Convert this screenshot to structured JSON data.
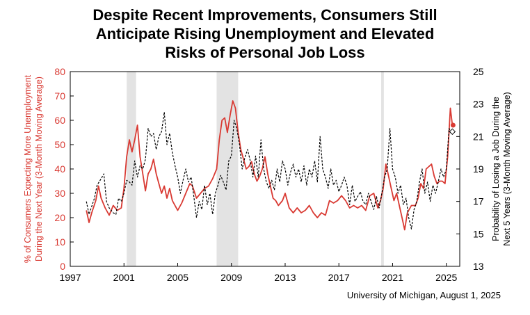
{
  "title_lines": [
    "Despite Recent Improvements, Consumers Still",
    "Anticipate Rising Unemployment and Elevated",
    "Risks of Personal Job Loss"
  ],
  "source_note": "University of Michigan, August 1, 2025",
  "colors": {
    "left_series": "#d93a33",
    "right_series": "#000000",
    "recession": "#e3e3e3",
    "left_axis": "#d93a33"
  },
  "chart_data": {
    "type": "line",
    "title": "Despite Recent Improvements, Consumers Still Anticipate Rising Unemployment and Elevated Risks of Personal Job Loss",
    "xlim": [
      1997,
      2026
    ],
    "x_ticks": [
      "1997",
      "2001",
      "2005",
      "2009",
      "2013",
      "2017",
      "2021",
      "2025"
    ],
    "ylabel_left_lines": [
      "% of Consumers Expecting More Unemployment",
      "During the Next Year (3-Month Moving Average)"
    ],
    "ylim_left": [
      0,
      80
    ],
    "yticks_left": [
      "0",
      "10",
      "20",
      "30",
      "40",
      "50",
      "60",
      "70",
      "80"
    ],
    "ylabel_right_lines": [
      "Probability of Losing a Job During the",
      "Next 5 Years (3-Month Moving Average)"
    ],
    "ylim_right": [
      13,
      25
    ],
    "yticks_right": [
      "13",
      "15",
      "17",
      "19",
      "21",
      "23",
      "25"
    ],
    "recessions": [
      [
        2001.2,
        2001.9
      ],
      [
        2007.9,
        2009.5
      ],
      [
        2020.15,
        2020.35
      ]
    ],
    "series": [
      {
        "axis": "left",
        "style": "solid",
        "points": [
          [
            1998.2,
            23
          ],
          [
            1998.4,
            18
          ],
          [
            1998.6,
            22
          ],
          [
            1998.9,
            27
          ],
          [
            1999.1,
            33
          ],
          [
            1999.3,
            28
          ],
          [
            1999.6,
            24
          ],
          [
            1999.9,
            21
          ],
          [
            2000.2,
            25
          ],
          [
            2000.5,
            23
          ],
          [
            2000.8,
            24
          ],
          [
            2001.0,
            32
          ],
          [
            2001.2,
            45
          ],
          [
            2001.4,
            52
          ],
          [
            2001.6,
            47
          ],
          [
            2001.8,
            52
          ],
          [
            2002.0,
            58
          ],
          [
            2002.2,
            45
          ],
          [
            2002.4,
            38
          ],
          [
            2002.6,
            31
          ],
          [
            2002.8,
            38
          ],
          [
            2003.0,
            40
          ],
          [
            2003.2,
            44
          ],
          [
            2003.4,
            38
          ],
          [
            2003.6,
            34
          ],
          [
            2003.8,
            30
          ],
          [
            2004.0,
            33
          ],
          [
            2004.2,
            28
          ],
          [
            2004.4,
            32
          ],
          [
            2004.6,
            27
          ],
          [
            2004.8,
            25
          ],
          [
            2005.0,
            23
          ],
          [
            2005.3,
            26
          ],
          [
            2005.6,
            30
          ],
          [
            2005.9,
            34
          ],
          [
            2006.1,
            33
          ],
          [
            2006.4,
            28
          ],
          [
            2006.7,
            30
          ],
          [
            2007.0,
            32
          ],
          [
            2007.3,
            33
          ],
          [
            2007.6,
            36
          ],
          [
            2007.9,
            40
          ],
          [
            2008.1,
            52
          ],
          [
            2008.3,
            60
          ],
          [
            2008.5,
            61
          ],
          [
            2008.7,
            55
          ],
          [
            2008.9,
            62
          ],
          [
            2009.1,
            68
          ],
          [
            2009.3,
            65
          ],
          [
            2009.5,
            55
          ],
          [
            2009.7,
            48
          ],
          [
            2009.9,
            44
          ],
          [
            2010.1,
            40
          ],
          [
            2010.3,
            41
          ],
          [
            2010.5,
            43
          ],
          [
            2010.7,
            38
          ],
          [
            2010.9,
            35
          ],
          [
            2011.1,
            37
          ],
          [
            2011.3,
            40
          ],
          [
            2011.5,
            45
          ],
          [
            2011.7,
            38
          ],
          [
            2011.9,
            33
          ],
          [
            2012.1,
            28
          ],
          [
            2012.3,
            27
          ],
          [
            2012.5,
            25
          ],
          [
            2012.8,
            27
          ],
          [
            2013.0,
            30
          ],
          [
            2013.3,
            24
          ],
          [
            2013.6,
            22
          ],
          [
            2013.9,
            24
          ],
          [
            2014.2,
            22
          ],
          [
            2014.5,
            23
          ],
          [
            2014.8,
            25
          ],
          [
            2015.1,
            22
          ],
          [
            2015.4,
            20
          ],
          [
            2015.7,
            22
          ],
          [
            2016.0,
            21
          ],
          [
            2016.3,
            27
          ],
          [
            2016.6,
            26
          ],
          [
            2016.9,
            27
          ],
          [
            2017.2,
            29
          ],
          [
            2017.5,
            27
          ],
          [
            2017.8,
            24
          ],
          [
            2018.1,
            25
          ],
          [
            2018.4,
            24
          ],
          [
            2018.7,
            25
          ],
          [
            2019.0,
            23
          ],
          [
            2019.3,
            29
          ],
          [
            2019.6,
            30
          ],
          [
            2019.9,
            24
          ],
          [
            2020.1,
            27
          ],
          [
            2020.3,
            32
          ],
          [
            2020.5,
            42
          ],
          [
            2020.7,
            37
          ],
          [
            2020.9,
            32
          ],
          [
            2021.1,
            27
          ],
          [
            2021.3,
            30
          ],
          [
            2021.5,
            25
          ],
          [
            2021.7,
            20
          ],
          [
            2021.9,
            15
          ],
          [
            2022.1,
            22
          ],
          [
            2022.4,
            25
          ],
          [
            2022.7,
            25
          ],
          [
            2022.9,
            28
          ],
          [
            2023.1,
            34
          ],
          [
            2023.3,
            32
          ],
          [
            2023.5,
            40
          ],
          [
            2023.7,
            41
          ],
          [
            2023.9,
            42
          ],
          [
            2024.1,
            37
          ],
          [
            2024.3,
            34
          ],
          [
            2024.5,
            35
          ],
          [
            2024.7,
            35
          ],
          [
            2024.9,
            34
          ],
          [
            2025.1,
            45
          ],
          [
            2025.3,
            65
          ],
          [
            2025.45,
            58
          ]
        ]
      },
      {
        "axis": "right",
        "style": "dashed",
        "points": [
          [
            1998.2,
            17.0
          ],
          [
            1998.4,
            16.2
          ],
          [
            1998.6,
            16.7
          ],
          [
            1998.8,
            17.2
          ],
          [
            1999.0,
            18.0
          ],
          [
            1999.3,
            18.4
          ],
          [
            1999.5,
            18.7
          ],
          [
            1999.7,
            17.0
          ],
          [
            1999.9,
            16.6
          ],
          [
            2000.2,
            16.3
          ],
          [
            2000.4,
            16.2
          ],
          [
            2000.6,
            17.2
          ],
          [
            2000.8,
            17.0
          ],
          [
            2001.0,
            17.5
          ],
          [
            2001.2,
            18.3
          ],
          [
            2001.4,
            18.2
          ],
          [
            2001.6,
            18.0
          ],
          [
            2001.8,
            19.5
          ],
          [
            2002.0,
            18.5
          ],
          [
            2002.2,
            19.2
          ],
          [
            2002.4,
            19.0
          ],
          [
            2002.6,
            19.6
          ],
          [
            2002.8,
            21.5
          ],
          [
            2003.0,
            21.0
          ],
          [
            2003.2,
            21.2
          ],
          [
            2003.4,
            20.2
          ],
          [
            2003.6,
            21.0
          ],
          [
            2003.8,
            21.3
          ],
          [
            2004.0,
            22.5
          ],
          [
            2004.2,
            20.5
          ],
          [
            2004.4,
            21.2
          ],
          [
            2004.6,
            20.0
          ],
          [
            2004.8,
            19.2
          ],
          [
            2005.0,
            18.5
          ],
          [
            2005.2,
            17.5
          ],
          [
            2005.4,
            18.3
          ],
          [
            2005.6,
            19.0
          ],
          [
            2005.8,
            18.2
          ],
          [
            2006.0,
            18.5
          ],
          [
            2006.2,
            17.3
          ],
          [
            2006.4,
            16.0
          ],
          [
            2006.6,
            17.0
          ],
          [
            2006.8,
            16.5
          ],
          [
            2007.0,
            18.0
          ],
          [
            2007.2,
            16.8
          ],
          [
            2007.4,
            17.5
          ],
          [
            2007.6,
            16.2
          ],
          [
            2007.8,
            17.5
          ],
          [
            2008.0,
            18.0
          ],
          [
            2008.2,
            18.6
          ],
          [
            2008.4,
            18.2
          ],
          [
            2008.6,
            17.7
          ],
          [
            2008.8,
            19.5
          ],
          [
            2009.0,
            19.8
          ],
          [
            2009.2,
            22.0
          ],
          [
            2009.4,
            21.5
          ],
          [
            2009.6,
            20.5
          ],
          [
            2009.8,
            19.0
          ],
          [
            2010.0,
            19.7
          ],
          [
            2010.2,
            20.2
          ],
          [
            2010.4,
            19.5
          ],
          [
            2010.6,
            18.5
          ],
          [
            2010.8,
            19.8
          ],
          [
            2011.0,
            18.5
          ],
          [
            2011.2,
            20.8
          ],
          [
            2011.4,
            19.0
          ],
          [
            2011.6,
            18.2
          ],
          [
            2011.8,
            17.8
          ],
          [
            2012.0,
            18.3
          ],
          [
            2012.2,
            17.7
          ],
          [
            2012.4,
            19.0
          ],
          [
            2012.6,
            18.2
          ],
          [
            2012.8,
            19.5
          ],
          [
            2013.0,
            19.0
          ],
          [
            2013.2,
            18.0
          ],
          [
            2013.4,
            18.8
          ],
          [
            2013.6,
            19.3
          ],
          [
            2013.8,
            18.5
          ],
          [
            2014.0,
            19.0
          ],
          [
            2014.2,
            18.2
          ],
          [
            2014.4,
            19.2
          ],
          [
            2014.6,
            18.0
          ],
          [
            2014.8,
            19.0
          ],
          [
            2015.0,
            18.5
          ],
          [
            2015.2,
            19.5
          ],
          [
            2015.4,
            18.2
          ],
          [
            2015.6,
            21.0
          ],
          [
            2015.8,
            19.0
          ],
          [
            2016.0,
            18.5
          ],
          [
            2016.2,
            17.8
          ],
          [
            2016.4,
            19.0
          ],
          [
            2016.6,
            18.0
          ],
          [
            2016.8,
            18.3
          ],
          [
            2017.0,
            17.6
          ],
          [
            2017.2,
            18.0
          ],
          [
            2017.4,
            18.5
          ],
          [
            2017.6,
            18.0
          ],
          [
            2017.8,
            16.8
          ],
          [
            2018.0,
            18.0
          ],
          [
            2018.2,
            17.0
          ],
          [
            2018.4,
            17.3
          ],
          [
            2018.6,
            17.6
          ],
          [
            2018.8,
            17.0
          ],
          [
            2019.0,
            16.8
          ],
          [
            2019.2,
            17.5
          ],
          [
            2019.4,
            17.0
          ],
          [
            2019.6,
            16.5
          ],
          [
            2019.8,
            17.3
          ],
          [
            2020.0,
            16.6
          ],
          [
            2020.2,
            17.5
          ],
          [
            2020.4,
            18.5
          ],
          [
            2020.6,
            19.0
          ],
          [
            2020.8,
            21.5
          ],
          [
            2021.0,
            19.0
          ],
          [
            2021.2,
            18.5
          ],
          [
            2021.4,
            17.5
          ],
          [
            2021.6,
            18.0
          ],
          [
            2021.8,
            16.8
          ],
          [
            2022.0,
            17.2
          ],
          [
            2022.2,
            16.0
          ],
          [
            2022.4,
            15.3
          ],
          [
            2022.6,
            16.5
          ],
          [
            2022.8,
            17.0
          ],
          [
            2023.0,
            18.2
          ],
          [
            2023.2,
            19.0
          ],
          [
            2023.4,
            17.5
          ],
          [
            2023.6,
            18.2
          ],
          [
            2023.8,
            17.0
          ],
          [
            2024.0,
            18.0
          ],
          [
            2024.2,
            17.5
          ],
          [
            2024.4,
            18.2
          ],
          [
            2024.6,
            19.0
          ],
          [
            2024.8,
            18.5
          ],
          [
            2025.0,
            19.0
          ],
          [
            2025.2,
            21.5
          ],
          [
            2025.4,
            21.2
          ]
        ]
      }
    ],
    "end_markers": [
      {
        "axis": "left",
        "x": 2025.5,
        "y": 58,
        "shape": "dot"
      },
      {
        "axis": "right",
        "x": 2025.45,
        "y": 21.3,
        "shape": "diamond-open"
      }
    ]
  }
}
